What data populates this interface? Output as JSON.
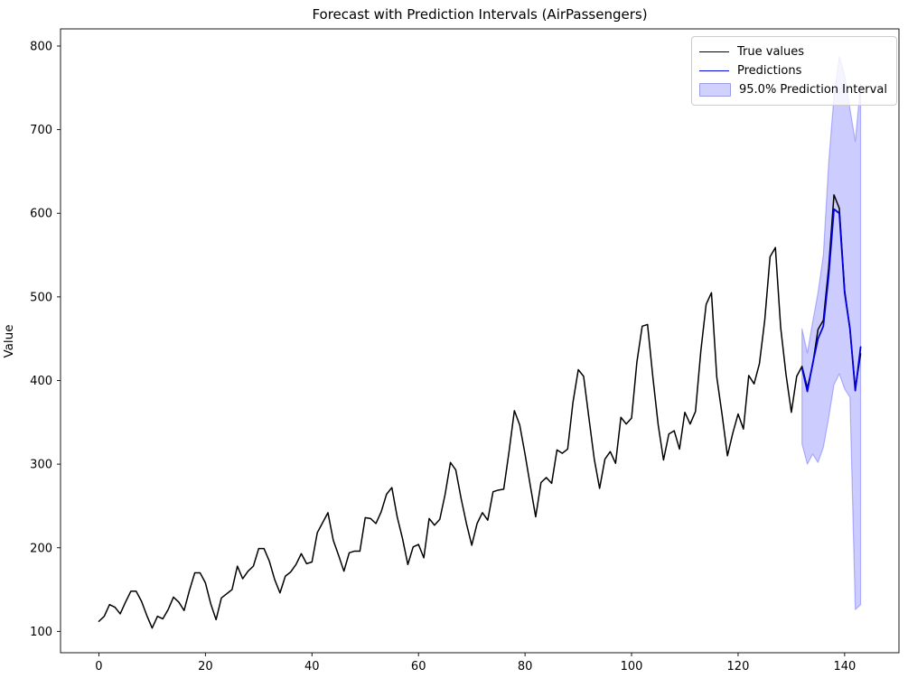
{
  "figure": {
    "title": "Forecast with Prediction Intervals (AirPassengers)",
    "ylabel": "Value"
  },
  "legend": {
    "items": [
      {
        "label": "True values",
        "type": "line",
        "color": "#000000"
      },
      {
        "label": "Predictions",
        "type": "line",
        "color": "#0000dd"
      },
      {
        "label": "95.0% Prediction Interval",
        "type": "patch",
        "color": "#0000ff",
        "alpha": 0.2
      }
    ]
  },
  "chart_data": {
    "type": "line",
    "title": "Forecast with Prediction Intervals (AirPassengers)",
    "xlabel": "",
    "ylabel": "Value",
    "xlim": [
      -7.2,
      150.2
    ],
    "ylim": [
      74.5,
      820.5
    ],
    "xticks": [
      0,
      20,
      40,
      60,
      80,
      100,
      120,
      140
    ],
    "yticks": [
      100,
      200,
      300,
      400,
      500,
      600,
      700,
      800
    ],
    "grid": false,
    "legend_position": "upper right",
    "series": [
      {
        "name": "True values",
        "color": "#000000",
        "linewidth": 1.5,
        "x_start": 0,
        "values": [
          112,
          118,
          132,
          129,
          121,
          135,
          148,
          148,
          136,
          119,
          104,
          118,
          115,
          126,
          141,
          135,
          125,
          149,
          170,
          170,
          158,
          133,
          114,
          140,
          145,
          150,
          178,
          163,
          172,
          178,
          199,
          199,
          184,
          162,
          146,
          166,
          171,
          180,
          193,
          181,
          183,
          218,
          230,
          242,
          209,
          191,
          172,
          194,
          196,
          196,
          236,
          235,
          229,
          243,
          264,
          272,
          237,
          211,
          180,
          201,
          204,
          188,
          235,
          227,
          234,
          264,
          302,
          293,
          259,
          229,
          203,
          229,
          242,
          233,
          267,
          269,
          270,
          315,
          364,
          347,
          312,
          274,
          237,
          278,
          284,
          277,
          317,
          313,
          318,
          374,
          413,
          405,
          355,
          306,
          271,
          306,
          315,
          301,
          356,
          348,
          355,
          422,
          465,
          467,
          404,
          347,
          305,
          336,
          340,
          318,
          362,
          348,
          363,
          435,
          491,
          505,
          404,
          359,
          310,
          337,
          360,
          342,
          406,
          396,
          420,
          472,
          548,
          559,
          463,
          407,
          362,
          405,
          417,
          391,
          419,
          461,
          472,
          535,
          622,
          606,
          508,
          461,
          390,
          432
        ]
      },
      {
        "name": "Predictions",
        "color": "#0000dd",
        "linewidth": 1.8,
        "x_start": 132,
        "values": [
          415,
          387,
          420,
          450,
          465,
          525,
          605,
          600,
          505,
          462,
          388,
          440
        ]
      }
    ],
    "interval": {
      "name": "95.0% Prediction Interval",
      "level": "95.0%",
      "color": "#0000ff",
      "alpha": 0.2,
      "x_start": 132,
      "upper": [
        462,
        433,
        470,
        505,
        550,
        660,
        740,
        787,
        765,
        725,
        686,
        755
      ],
      "lower": [
        324,
        300,
        312,
        302,
        320,
        355,
        395,
        408,
        390,
        380,
        126,
        132
      ]
    }
  }
}
